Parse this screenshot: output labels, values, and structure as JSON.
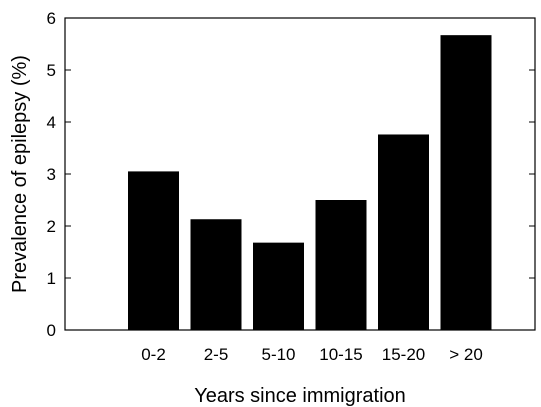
{
  "chart_data": {
    "type": "bar",
    "title": "",
    "xlabel": "Years since immigration",
    "ylabel": "Prevalence of epilepsy (%)",
    "categories": [
      "0-2",
      "2-5",
      "5-10",
      "10-15",
      "15-20",
      "> 20"
    ],
    "values": [
      3.05,
      2.13,
      1.68,
      2.5,
      3.76,
      5.67
    ],
    "ylim": [
      0,
      6
    ],
    "yticks": [
      "0",
      "1",
      "2",
      "3",
      "4",
      "5",
      "6"
    ],
    "grid": false,
    "legend": "none",
    "bar_color": "#000000"
  }
}
